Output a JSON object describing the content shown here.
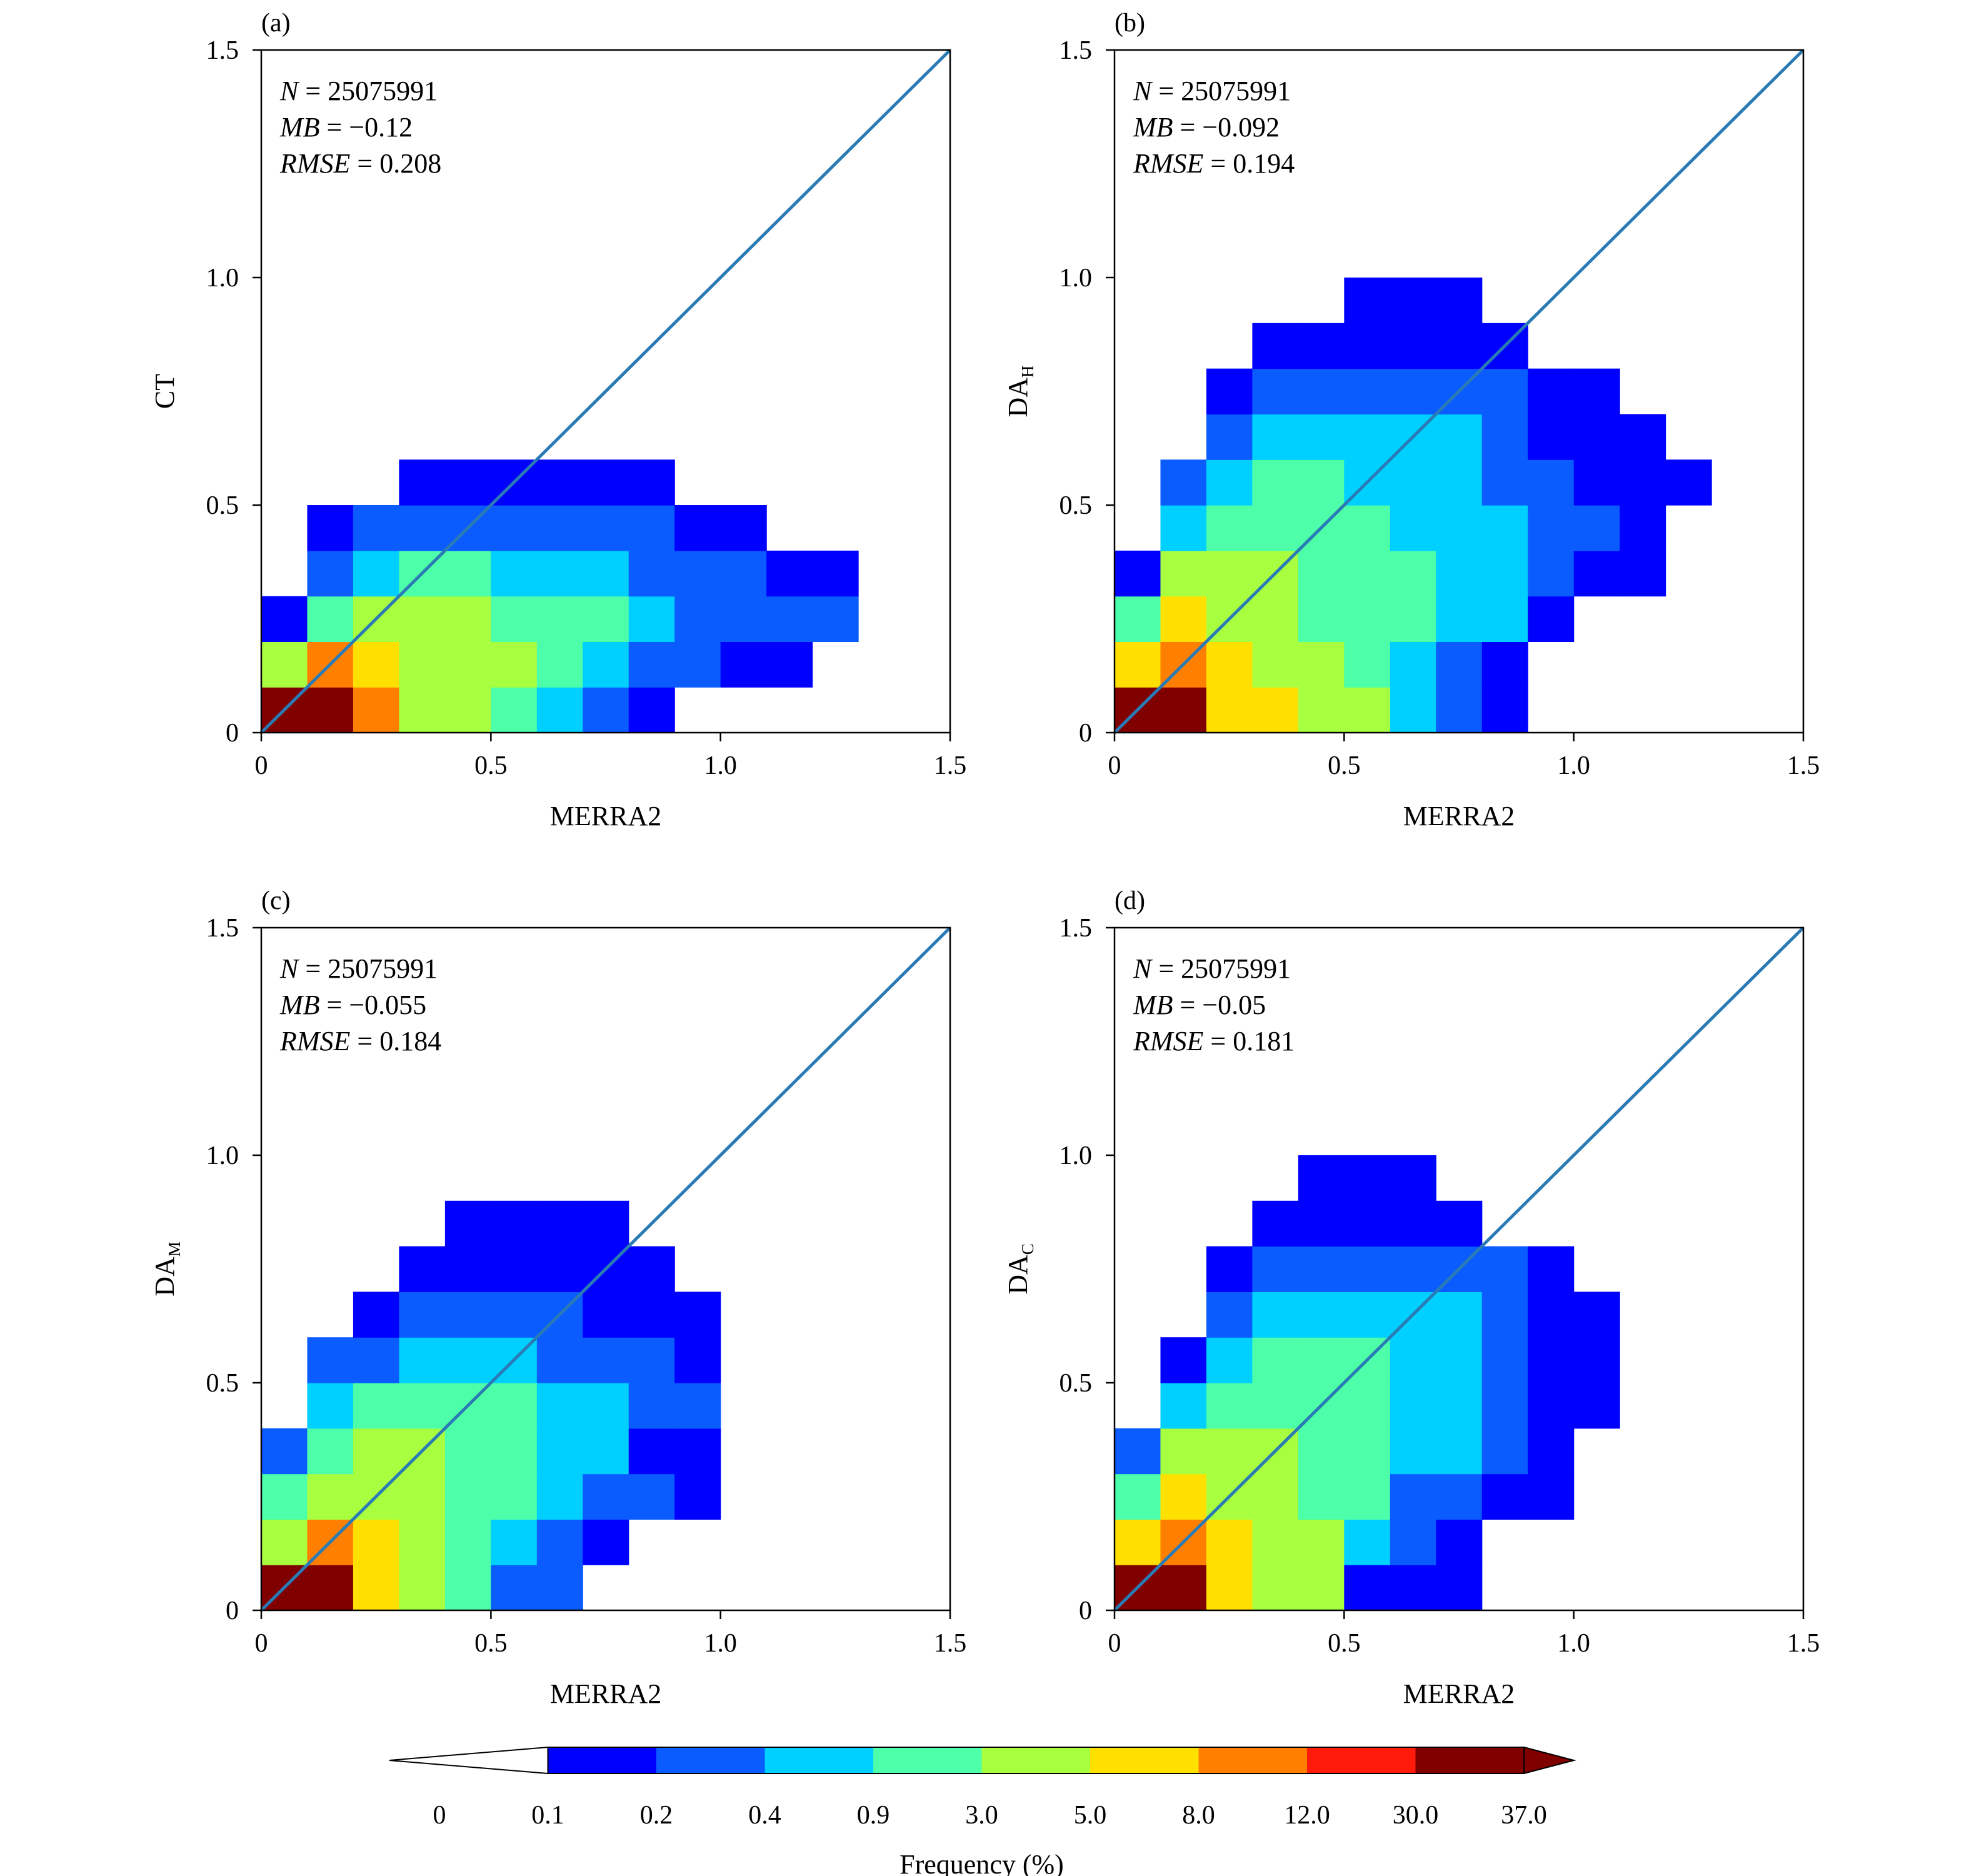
{
  "chart_data": {
    "type": "heatmap",
    "colorbar": {
      "title": "Frequency (%)",
      "tick_labels": [
        "0",
        "0.1",
        "0.2",
        "0.4",
        "0.9",
        "3.0",
        "5.0",
        "8.0",
        "12.0",
        "30.0",
        "37.0"
      ],
      "colors": [
        "#ffffff",
        "#0000ff",
        "#0a5cff",
        "#00d0ff",
        "#4cffa8",
        "#a8ff40",
        "#ffe000",
        "#ff8000",
        "#ff1a0a",
        "#800000"
      ],
      "extend": "both"
    },
    "common": {
      "xlim": [
        0,
        1.5
      ],
      "ylim": [
        0,
        1.5
      ],
      "x_ticks": [
        "0",
        "0.5",
        "1.0",
        "1.5"
      ],
      "y_ticks": [
        "0",
        "0.5",
        "1.0",
        "1.5"
      ],
      "bin_width": 0.1,
      "one_to_one_line_color": "#2a7ab5"
    },
    "panels": [
      {
        "panel_label": "(a)",
        "xlabel": "MERRA2",
        "ylabel_main": "CT",
        "ylabel_sub": "",
        "stats": {
          "n_label": "N",
          "n_value": "= 25075991",
          "mb_label": "MB",
          "mb_value": "= −0.12",
          "rmse_label": "RMSE",
          "rmse_value": "= 0.208"
        },
        "grid_rows": [
          [
            9,
            9,
            7,
            5,
            5,
            4,
            3,
            2,
            1,
            0,
            0,
            0,
            0,
            0,
            0
          ],
          [
            5,
            7,
            6,
            5,
            5,
            5,
            4,
            3,
            2,
            2,
            1,
            1,
            0,
            0,
            0
          ],
          [
            1,
            4,
            5,
            5,
            5,
            4,
            4,
            4,
            3,
            2,
            2,
            2,
            2,
            0,
            0
          ],
          [
            0,
            2,
            3,
            4,
            4,
            3,
            3,
            3,
            2,
            2,
            2,
            1,
            1,
            0,
            0
          ],
          [
            0,
            1,
            2,
            2,
            2,
            2,
            2,
            2,
            2,
            1,
            1,
            0,
            0,
            0,
            0
          ],
          [
            0,
            0,
            0,
            1,
            1,
            1,
            1,
            1,
            1,
            0,
            0,
            0,
            0,
            0,
            0
          ]
        ]
      },
      {
        "panel_label": "(b)",
        "xlabel": "MERRA2",
        "ylabel_main": "DA",
        "ylabel_sub": "H",
        "stats": {
          "n_label": "N",
          "n_value": "= 25075991",
          "mb_label": "MB",
          "mb_value": "= −0.092",
          "rmse_label": "RMSE",
          "rmse_value": "= 0.194"
        },
        "grid_rows": [
          [
            9,
            9,
            6,
            6,
            5,
            5,
            3,
            2,
            1,
            0,
            0,
            0,
            0,
            0,
            0
          ],
          [
            6,
            7,
            6,
            5,
            5,
            4,
            3,
            2,
            1,
            0,
            0,
            0,
            0,
            0,
            0
          ],
          [
            4,
            6,
            5,
            5,
            4,
            4,
            4,
            3,
            3,
            1,
            0,
            0,
            0,
            0,
            0
          ],
          [
            1,
            5,
            5,
            5,
            4,
            4,
            4,
            3,
            3,
            2,
            1,
            1,
            0,
            0,
            0
          ],
          [
            0,
            3,
            4,
            4,
            4,
            4,
            3,
            3,
            3,
            2,
            2,
            1,
            0,
            0,
            0
          ],
          [
            0,
            2,
            3,
            4,
            4,
            3,
            3,
            3,
            2,
            2,
            1,
            1,
            1,
            0,
            0
          ],
          [
            0,
            0,
            2,
            3,
            3,
            3,
            3,
            3,
            2,
            1,
            1,
            1,
            0,
            0,
            0
          ],
          [
            0,
            0,
            1,
            2,
            2,
            2,
            2,
            2,
            2,
            1,
            1,
            0,
            0,
            0,
            0
          ],
          [
            0,
            0,
            0,
            1,
            1,
            1,
            1,
            1,
            1,
            0,
            0,
            0,
            0,
            0,
            0
          ],
          [
            0,
            0,
            0,
            0,
            0,
            1,
            1,
            1,
            0,
            0,
            0,
            0,
            0,
            0,
            0
          ]
        ]
      },
      {
        "panel_label": "(c)",
        "xlabel": "MERRA2",
        "ylabel_main": "DA",
        "ylabel_sub": "M",
        "stats": {
          "n_label": "N",
          "n_value": "= 25075991",
          "mb_label": "MB",
          "mb_value": "= −0.055",
          "rmse_label": "RMSE",
          "rmse_value": "= 0.184"
        },
        "grid_rows": [
          [
            9,
            9,
            6,
            5,
            4,
            2,
            2,
            0,
            0,
            0,
            0,
            0,
            0,
            0,
            0
          ],
          [
            5,
            7,
            6,
            5,
            4,
            3,
            2,
            1,
            0,
            0,
            0,
            0,
            0,
            0,
            0
          ],
          [
            4,
            5,
            5,
            5,
            4,
            4,
            3,
            2,
            2,
            1,
            0,
            0,
            0,
            0,
            0
          ],
          [
            2,
            4,
            5,
            5,
            4,
            4,
            3,
            3,
            1,
            1,
            0,
            0,
            0,
            0,
            0
          ],
          [
            0,
            3,
            4,
            4,
            4,
            4,
            3,
            3,
            2,
            2,
            0,
            0,
            0,
            0,
            0
          ],
          [
            0,
            2,
            2,
            3,
            3,
            3,
            2,
            2,
            2,
            1,
            0,
            0,
            0,
            0,
            0
          ],
          [
            0,
            0,
            1,
            2,
            2,
            2,
            2,
            1,
            1,
            1,
            0,
            0,
            0,
            0,
            0
          ],
          [
            0,
            0,
            0,
            1,
            1,
            1,
            1,
            1,
            1,
            0,
            0,
            0,
            0,
            0,
            0
          ],
          [
            0,
            0,
            0,
            0,
            1,
            1,
            1,
            1,
            0,
            0,
            0,
            0,
            0,
            0,
            0
          ]
        ]
      },
      {
        "panel_label": "(d)",
        "xlabel": "MERRA2",
        "ylabel_main": "DA",
        "ylabel_sub": "C",
        "stats": {
          "n_label": "N",
          "n_value": "= 25075991",
          "mb_label": "MB",
          "mb_value": "= −0.05",
          "rmse_label": "RMSE",
          "rmse_value": "= 0.181"
        },
        "grid_rows": [
          [
            9,
            9,
            6,
            5,
            5,
            1,
            1,
            1,
            0,
            0,
            0,
            0,
            0,
            0,
            0
          ],
          [
            6,
            7,
            6,
            5,
            5,
            3,
            2,
            1,
            0,
            0,
            0,
            0,
            0,
            0,
            0
          ],
          [
            4,
            6,
            5,
            5,
            4,
            4,
            2,
            2,
            1,
            1,
            0,
            0,
            0,
            0,
            0
          ],
          [
            2,
            5,
            5,
            5,
            4,
            4,
            3,
            3,
            2,
            1,
            0,
            0,
            0,
            0,
            0
          ],
          [
            0,
            3,
            4,
            4,
            4,
            4,
            3,
            3,
            2,
            1,
            1,
            0,
            0,
            0,
            0
          ],
          [
            0,
            1,
            3,
            4,
            4,
            4,
            3,
            3,
            2,
            1,
            1,
            0,
            0,
            0,
            0
          ],
          [
            0,
            0,
            2,
            3,
            3,
            3,
            3,
            3,
            2,
            1,
            1,
            0,
            0,
            0,
            0
          ],
          [
            0,
            0,
            1,
            2,
            2,
            2,
            2,
            2,
            2,
            1,
            0,
            0,
            0,
            0,
            0
          ],
          [
            0,
            0,
            0,
            1,
            1,
            1,
            1,
            1,
            0,
            0,
            0,
            0,
            0,
            0,
            0
          ],
          [
            0,
            0,
            0,
            0,
            1,
            1,
            1,
            0,
            0,
            0,
            0,
            0,
            0,
            0,
            0
          ]
        ]
      }
    ]
  }
}
